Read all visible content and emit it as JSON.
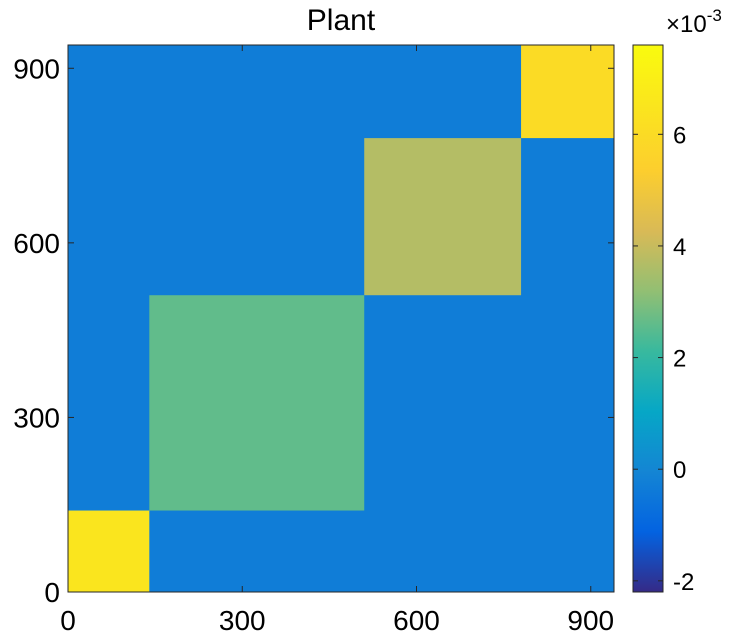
{
  "chart_data": {
    "type": "heatmap",
    "title": "Plant",
    "xlim": [
      0,
      940
    ],
    "ylim": [
      0,
      940
    ],
    "x_ticks": [
      0,
      300,
      600,
      900
    ],
    "y_ticks": [
      0,
      300,
      600,
      900
    ],
    "x_tick_labels": [
      "0",
      "300",
      "600",
      "900"
    ],
    "y_tick_labels": [
      "0",
      "300",
      "600",
      "900"
    ],
    "background_value": -0.0003,
    "blocks": [
      {
        "x_range": [
          0,
          140
        ],
        "y_range": [
          0,
          140
        ],
        "value": 0.0065
      },
      {
        "x_range": [
          140,
          510
        ],
        "y_range": [
          140,
          510
        ],
        "value": 0.0026
      },
      {
        "x_range": [
          510,
          780
        ],
        "y_range": [
          510,
          780
        ],
        "value": 0.0037
      },
      {
        "x_range": [
          780,
          940
        ],
        "y_range": [
          780,
          940
        ],
        "value": 0.006
      }
    ],
    "colorbar": {
      "range": [
        -0.0022,
        0.0076
      ],
      "ticks": [
        -2,
        0,
        2,
        4,
        6
      ],
      "tick_labels": [
        "-2",
        "0",
        "2",
        "4",
        "6"
      ],
      "multiplier_base": "×10",
      "multiplier_exponent": "-3"
    },
    "colormap": "parula",
    "grid": false
  }
}
